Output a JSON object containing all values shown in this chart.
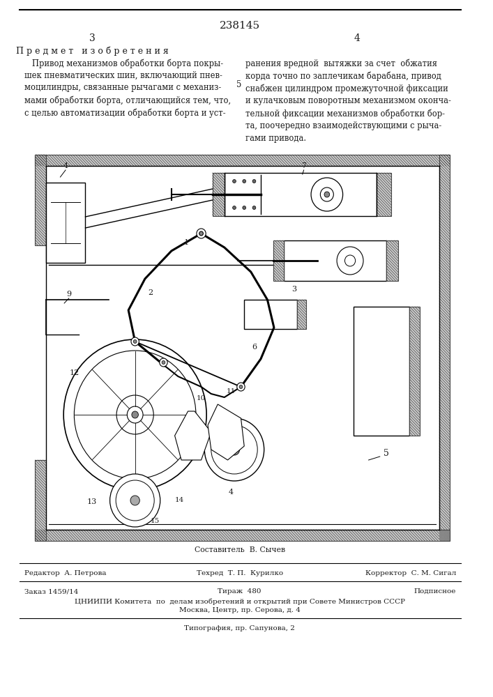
{
  "patent_number": "238145",
  "page_left": "3",
  "page_right": "4",
  "section_title": "П р е д м е т   и з о б р е т е н и я",
  "col_number": "5",
  "text_left": "   Привод механизмов обработки борта покры-\nшек пневматических шин, включающий пнев-\nмоцилиндры, связанные рычагами с механиз-\nмами обработки борта, отличающийся тем, что,\nс целью автоматизации обработки борта и уст-",
  "text_right": "ранения вредной  вытяжки за счет  обжатия\nкорда точно по заплечикам барабана, привод\nснабжен цилиндром промежуточной фиксации\nи кулачковым поворотным механизмом оконча-\nтельной фиксации механизмов обработки бор-\nта, поочередно взаимодействующими с рыча-\nгами привода.",
  "composer_label": "Составитель  В. Сычев",
  "footer_line1_left": "Редактор  А. Петрова",
  "footer_line1_center": "Техред  Т. П.  Курилко",
  "footer_line1_right": "Корректор  С. М. Сигал",
  "footer_line2_left": "Заказ 1459/14",
  "footer_line2_center": "Тираж  480",
  "footer_line2_right": "Подписное",
  "footer_line3": "ЦНИИПИ Комитета  по  делам изобретений и открытий при Совете Министров СССР",
  "footer_line4": "Москва, Центр, пр. Серова, д. 4",
  "footer_line5": "Типография, пр. Сапунова, 2",
  "bg_color": "#ffffff",
  "text_color": "#1a1a1a",
  "line_color": "#000000",
  "figsize": [
    7.07,
    10.0
  ],
  "dpi": 100
}
